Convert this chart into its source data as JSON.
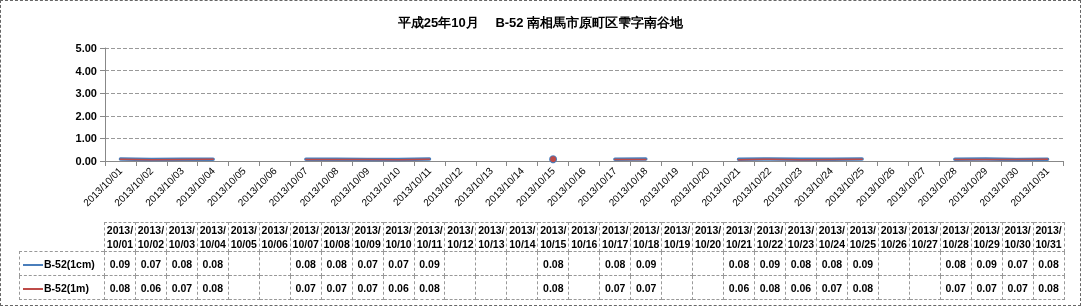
{
  "chart_data": {
    "type": "line",
    "title": "平成25年10月　 B-52 南相馬市原町区雫字南谷地",
    "categories": [
      "2013/10/01",
      "2013/10/02",
      "2013/10/03",
      "2013/10/04",
      "2013/10/05",
      "2013/10/06",
      "2013/10/07",
      "2013/10/08",
      "2013/10/09",
      "2013/10/10",
      "2013/10/11",
      "2013/10/12",
      "2013/10/13",
      "2013/10/14",
      "2013/10/15",
      "2013/10/16",
      "2013/10/17",
      "2013/10/18",
      "2013/10/19",
      "2013/10/20",
      "2013/10/21",
      "2013/10/22",
      "2013/10/23",
      "2013/10/24",
      "2013/10/25",
      "2013/10/26",
      "2013/10/27",
      "2013/10/28",
      "2013/10/29",
      "2013/10/30",
      "2013/10/31"
    ],
    "series": [
      {
        "name": "B-52(1cm)",
        "color": "#4a7ebb",
        "values": [
          0.09,
          0.07,
          0.08,
          0.08,
          null,
          null,
          0.08,
          0.08,
          0.07,
          0.07,
          0.09,
          null,
          null,
          null,
          0.08,
          null,
          0.08,
          0.09,
          null,
          null,
          0.08,
          0.09,
          0.08,
          0.08,
          0.09,
          null,
          null,
          0.08,
          0.09,
          0.07,
          0.08
        ]
      },
      {
        "name": "B-52(1m)",
        "color": "#be4b48",
        "values": [
          0.08,
          0.06,
          0.07,
          0.08,
          null,
          null,
          0.07,
          0.07,
          0.07,
          0.06,
          0.08,
          null,
          null,
          null,
          0.08,
          null,
          0.07,
          0.07,
          null,
          null,
          0.06,
          0.08,
          0.06,
          0.07,
          0.08,
          null,
          null,
          0.07,
          0.07,
          0.07,
          0.08
        ]
      }
    ],
    "ylim": [
      0,
      5
    ],
    "yticks": [
      {
        "value": 0,
        "label": "0.00"
      },
      {
        "value": 1,
        "label": "1.00"
      },
      {
        "value": 2,
        "label": "2.00"
      },
      {
        "value": 3,
        "label": "3.00"
      },
      {
        "value": 4,
        "label": "4.00"
      },
      {
        "value": 5,
        "label": "5.00"
      }
    ],
    "grid": "y",
    "legend": "bottom",
    "data_labels": true,
    "marker": "none",
    "line_style": "solid"
  }
}
